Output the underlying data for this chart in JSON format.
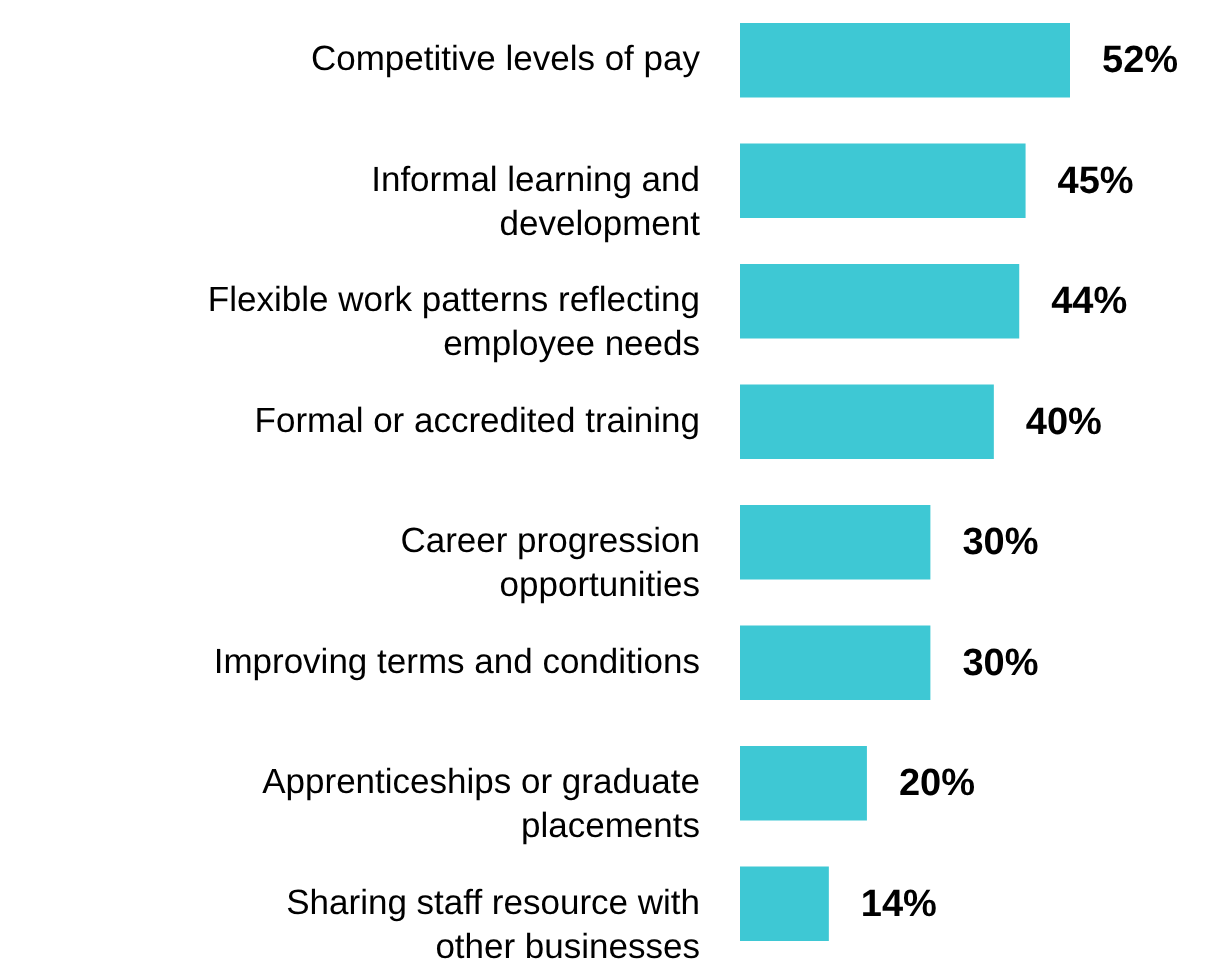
{
  "chart_data": {
    "type": "bar",
    "orientation": "horizontal",
    "categories": [
      "Competitive levels of pay",
      "Informal learning and\ndevelopment",
      "Flexible work patterns reflecting\nemployee needs",
      "Formal or accredited training",
      "Career progression\nopportunities",
      "Improving terms and conditions",
      "Apprenticeships or graduate\nplacements",
      "Sharing staff resource with\nother businesses"
    ],
    "values": [
      52,
      45,
      44,
      40,
      30,
      30,
      20,
      14
    ],
    "value_labels": [
      "52%",
      "45%",
      "44%",
      "40%",
      "30%",
      "30%",
      "20%",
      "14%"
    ],
    "color": "#3ec8d4"
  }
}
